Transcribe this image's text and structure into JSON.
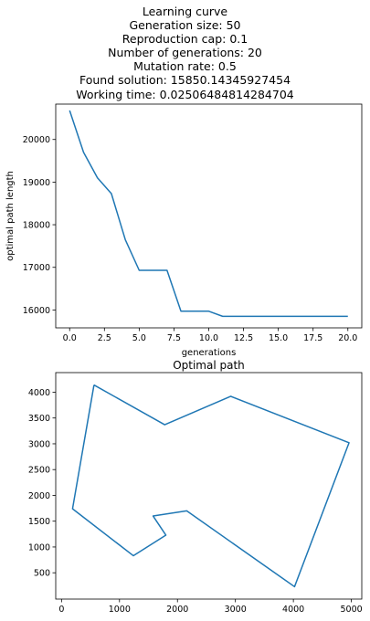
{
  "chart_data": [
    {
      "type": "line",
      "title_lines": [
        "Learning curve",
        "Generation size: 50",
        "Reproduction cap: 0.1",
        "Number of generations: 20",
        "Mutation rate: 0.5",
        "Found solution: 15850.14345927454",
        "Working time: 0.02506484814284704"
      ],
      "xlabel": "generations",
      "ylabel": "optimal path length",
      "xlim": [
        -1,
        21
      ],
      "ylim": [
        15580,
        20830
      ],
      "x_ticks": [
        0,
        2.5,
        5,
        7.5,
        10,
        12.5,
        15,
        17.5,
        20
      ],
      "x_tick_labels": [
        "0.0",
        "2.5",
        "5.0",
        "7.5",
        "10.0",
        "12.5",
        "15.0",
        "17.5",
        "20.0"
      ],
      "y_ticks": [
        16000,
        17000,
        18000,
        19000,
        20000
      ],
      "y_tick_labels": [
        "16000",
        "17000",
        "18000",
        "19000",
        "20000"
      ],
      "color": "#1f77b4",
      "x": [
        0,
        1,
        2,
        3,
        4,
        5,
        6,
        7,
        8,
        9,
        10,
        11,
        12,
        13,
        14,
        15,
        16,
        17,
        18,
        19,
        20
      ],
      "y": [
        20680,
        19700,
        19100,
        18730,
        17650,
        16930,
        16930,
        16930,
        15970,
        15970,
        15970,
        15850.14,
        15850.14,
        15850.14,
        15850.14,
        15850.14,
        15850.14,
        15850.14,
        15850.14,
        15850.14,
        15850.14
      ],
      "grid": false
    },
    {
      "type": "line",
      "title": "Optimal path",
      "xlabel": "",
      "ylabel": "",
      "xlim": [
        -100,
        5180
      ],
      "ylim": [
        -10,
        4380
      ],
      "x_ticks": [
        0,
        1000,
        2000,
        3000,
        4000,
        5000
      ],
      "x_tick_labels": [
        "0",
        "1000",
        "2000",
        "3000",
        "4000",
        "5000"
      ],
      "y_ticks": [
        500,
        1000,
        1500,
        2000,
        2500,
        3000,
        3500,
        4000
      ],
      "y_tick_labels": [
        "500",
        "1000",
        "1500",
        "2000",
        "2500",
        "3000",
        "3500",
        "4000"
      ],
      "color": "#1f77b4",
      "x": [
        560,
        1780,
        2920,
        4960,
        4020,
        2160,
        1580,
        1800,
        1240,
        190,
        560
      ],
      "y": [
        4140,
        3370,
        3920,
        3020,
        230,
        1700,
        1600,
        1230,
        830,
        1740,
        4140
      ],
      "grid": false
    }
  ]
}
